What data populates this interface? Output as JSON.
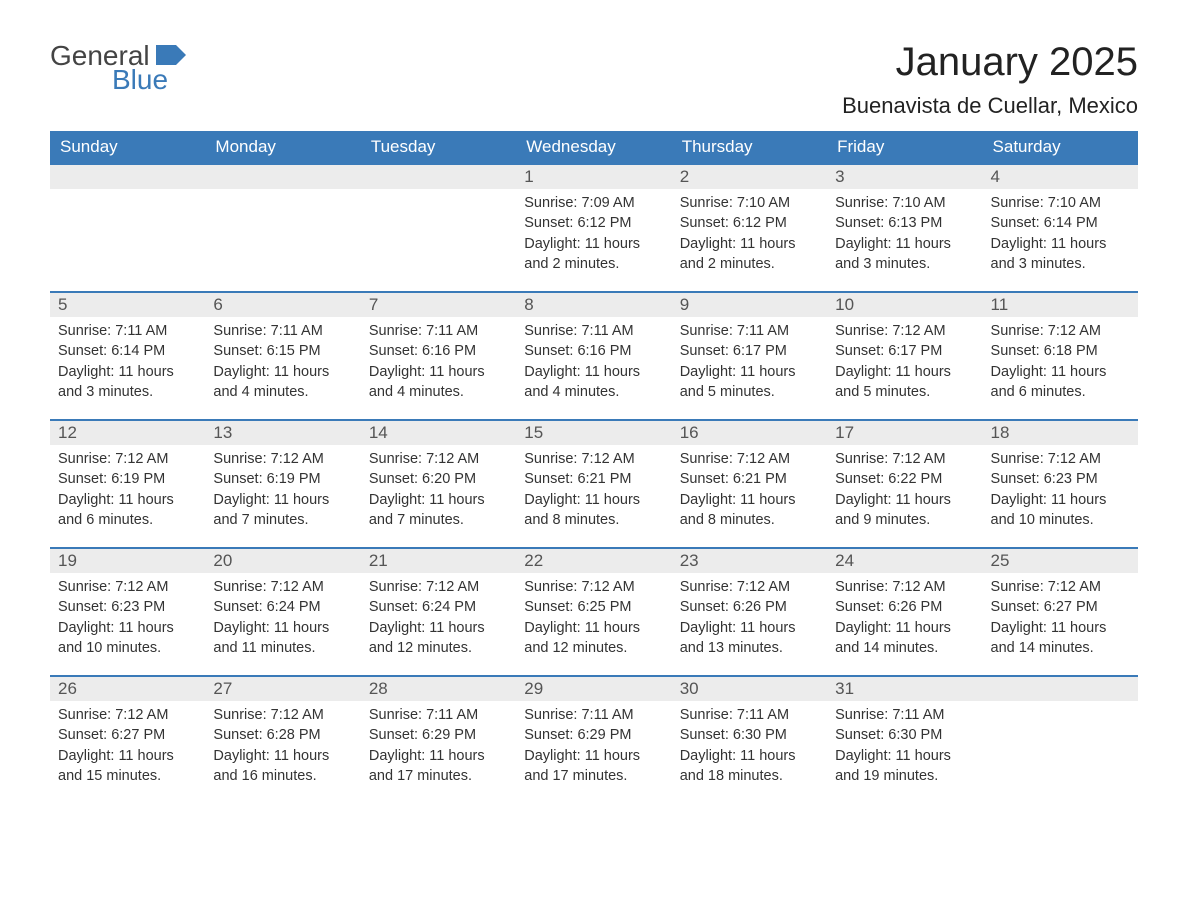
{
  "logo": {
    "text1": "General",
    "text2": "Blue"
  },
  "title": "January 2025",
  "location": "Buenavista de Cuellar, Mexico",
  "columns": [
    "Sunday",
    "Monday",
    "Tuesday",
    "Wednesday",
    "Thursday",
    "Friday",
    "Saturday"
  ],
  "colors": {
    "header_bg": "#3a7ab8",
    "header_text": "#ffffff",
    "day_num_bg": "#ececec",
    "week_border": "#3a7ab8",
    "body_text": "#333333",
    "title_text": "#222222",
    "logo_gray": "#444444",
    "logo_blue": "#3a7ab8",
    "page_bg": "#ffffff"
  },
  "fonts": {
    "title_size_pt": 30,
    "location_size_pt": 16,
    "header_size_pt": 13,
    "daynum_size_pt": 13,
    "body_size_pt": 11
  },
  "weeks": [
    [
      null,
      null,
      null,
      {
        "n": "1",
        "sunrise": "7:09 AM",
        "sunset": "6:12 PM",
        "daylight": "11 hours and 2 minutes."
      },
      {
        "n": "2",
        "sunrise": "7:10 AM",
        "sunset": "6:12 PM",
        "daylight": "11 hours and 2 minutes."
      },
      {
        "n": "3",
        "sunrise": "7:10 AM",
        "sunset": "6:13 PM",
        "daylight": "11 hours and 3 minutes."
      },
      {
        "n": "4",
        "sunrise": "7:10 AM",
        "sunset": "6:14 PM",
        "daylight": "11 hours and 3 minutes."
      }
    ],
    [
      {
        "n": "5",
        "sunrise": "7:11 AM",
        "sunset": "6:14 PM",
        "daylight": "11 hours and 3 minutes."
      },
      {
        "n": "6",
        "sunrise": "7:11 AM",
        "sunset": "6:15 PM",
        "daylight": "11 hours and 4 minutes."
      },
      {
        "n": "7",
        "sunrise": "7:11 AM",
        "sunset": "6:16 PM",
        "daylight": "11 hours and 4 minutes."
      },
      {
        "n": "8",
        "sunrise": "7:11 AM",
        "sunset": "6:16 PM",
        "daylight": "11 hours and 4 minutes."
      },
      {
        "n": "9",
        "sunrise": "7:11 AM",
        "sunset": "6:17 PM",
        "daylight": "11 hours and 5 minutes."
      },
      {
        "n": "10",
        "sunrise": "7:12 AM",
        "sunset": "6:17 PM",
        "daylight": "11 hours and 5 minutes."
      },
      {
        "n": "11",
        "sunrise": "7:12 AM",
        "sunset": "6:18 PM",
        "daylight": "11 hours and 6 minutes."
      }
    ],
    [
      {
        "n": "12",
        "sunrise": "7:12 AM",
        "sunset": "6:19 PM",
        "daylight": "11 hours and 6 minutes."
      },
      {
        "n": "13",
        "sunrise": "7:12 AM",
        "sunset": "6:19 PM",
        "daylight": "11 hours and 7 minutes."
      },
      {
        "n": "14",
        "sunrise": "7:12 AM",
        "sunset": "6:20 PM",
        "daylight": "11 hours and 7 minutes."
      },
      {
        "n": "15",
        "sunrise": "7:12 AM",
        "sunset": "6:21 PM",
        "daylight": "11 hours and 8 minutes."
      },
      {
        "n": "16",
        "sunrise": "7:12 AM",
        "sunset": "6:21 PM",
        "daylight": "11 hours and 8 minutes."
      },
      {
        "n": "17",
        "sunrise": "7:12 AM",
        "sunset": "6:22 PM",
        "daylight": "11 hours and 9 minutes."
      },
      {
        "n": "18",
        "sunrise": "7:12 AM",
        "sunset": "6:23 PM",
        "daylight": "11 hours and 10 minutes."
      }
    ],
    [
      {
        "n": "19",
        "sunrise": "7:12 AM",
        "sunset": "6:23 PM",
        "daylight": "11 hours and 10 minutes."
      },
      {
        "n": "20",
        "sunrise": "7:12 AM",
        "sunset": "6:24 PM",
        "daylight": "11 hours and 11 minutes."
      },
      {
        "n": "21",
        "sunrise": "7:12 AM",
        "sunset": "6:24 PM",
        "daylight": "11 hours and 12 minutes."
      },
      {
        "n": "22",
        "sunrise": "7:12 AM",
        "sunset": "6:25 PM",
        "daylight": "11 hours and 12 minutes."
      },
      {
        "n": "23",
        "sunrise": "7:12 AM",
        "sunset": "6:26 PM",
        "daylight": "11 hours and 13 minutes."
      },
      {
        "n": "24",
        "sunrise": "7:12 AM",
        "sunset": "6:26 PM",
        "daylight": "11 hours and 14 minutes."
      },
      {
        "n": "25",
        "sunrise": "7:12 AM",
        "sunset": "6:27 PM",
        "daylight": "11 hours and 14 minutes."
      }
    ],
    [
      {
        "n": "26",
        "sunrise": "7:12 AM",
        "sunset": "6:27 PM",
        "daylight": "11 hours and 15 minutes."
      },
      {
        "n": "27",
        "sunrise": "7:12 AM",
        "sunset": "6:28 PM",
        "daylight": "11 hours and 16 minutes."
      },
      {
        "n": "28",
        "sunrise": "7:11 AM",
        "sunset": "6:29 PM",
        "daylight": "11 hours and 17 minutes."
      },
      {
        "n": "29",
        "sunrise": "7:11 AM",
        "sunset": "6:29 PM",
        "daylight": "11 hours and 17 minutes."
      },
      {
        "n": "30",
        "sunrise": "7:11 AM",
        "sunset": "6:30 PM",
        "daylight": "11 hours and 18 minutes."
      },
      {
        "n": "31",
        "sunrise": "7:11 AM",
        "sunset": "6:30 PM",
        "daylight": "11 hours and 19 minutes."
      },
      null
    ]
  ],
  "labels": {
    "sunrise": "Sunrise: ",
    "sunset": "Sunset: ",
    "daylight": "Daylight: "
  }
}
